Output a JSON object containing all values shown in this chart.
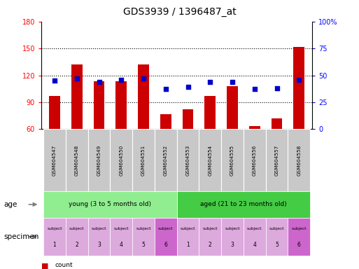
{
  "title": "GDS3939 / 1396487_at",
  "samples": [
    "GSM604547",
    "GSM604548",
    "GSM604549",
    "GSM604550",
    "GSM604551",
    "GSM604552",
    "GSM604553",
    "GSM604554",
    "GSM604555",
    "GSM604556",
    "GSM604557",
    "GSM604558"
  ],
  "counts": [
    97,
    132,
    113,
    113,
    132,
    77,
    82,
    97,
    108,
    63,
    72,
    152
  ],
  "percentiles": [
    45,
    47,
    44,
    46,
    47,
    37,
    39,
    44,
    44,
    37,
    38,
    46
  ],
  "ylim_left": [
    60,
    180
  ],
  "ylim_right": [
    0,
    100
  ],
  "yticks_left": [
    60,
    90,
    120,
    150,
    180
  ],
  "yticks_right": [
    0,
    25,
    50,
    75,
    100
  ],
  "bar_color": "#cc0000",
  "dot_color": "#0000cc",
  "age_young_color": "#90ee90",
  "age_aged_color": "#44cc44",
  "specimen_color_light": "#ddaadd",
  "specimen_color_dark": "#cc66cc",
  "title_fontsize": 10,
  "tick_label_fontsize": 7,
  "sample_label_bg": "#c8c8c8",
  "specimen_labels_top": [
    "subject",
    "subject",
    "subject",
    "subject",
    "subject",
    "subject",
    "subject",
    "subject",
    "subject",
    "subject",
    "subject",
    "subject"
  ],
  "specimen_labels_num": [
    "1",
    "2",
    "3",
    "4",
    "5",
    "6",
    "1",
    "2",
    "3",
    "4",
    "5",
    "6"
  ]
}
